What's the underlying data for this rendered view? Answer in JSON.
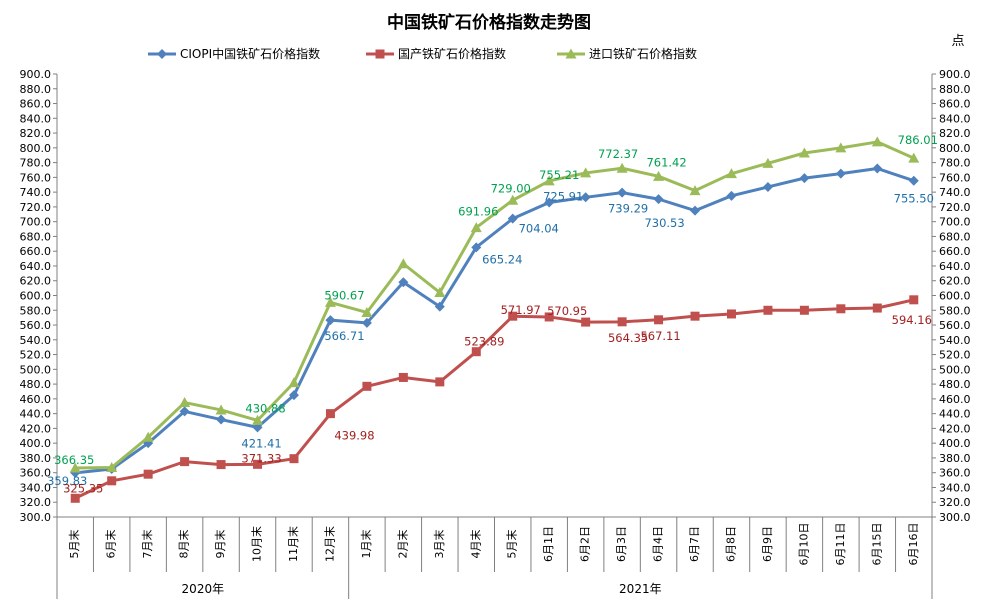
{
  "chart_data": {
    "type": "line",
    "title": "中国铁矿石价格指数走势图",
    "unit_label": "点",
    "ylim": [
      300,
      900
    ],
    "ystep": 20,
    "grid": false,
    "legend_position": "top",
    "categories": [
      "5月末",
      "6月末",
      "7月末",
      "8月末",
      "9月末",
      "10月末",
      "11月末",
      "12月末",
      "1月末",
      "2月末",
      "3月末",
      "4月末",
      "5月末",
      "6月1日",
      "6月2日",
      "6月3日",
      "6月4日",
      "6月7日",
      "6月8日",
      "6月9日",
      "6月10日",
      "6月11日",
      "6月15日",
      "6月16日"
    ],
    "year_groups": [
      {
        "label": "2020年",
        "start": 0,
        "end": 7
      },
      {
        "label": "2021年",
        "start": 8,
        "end": 23
      }
    ],
    "series": [
      {
        "name": "CIOPI中国铁矿石价格指数",
        "color": "#4F81BD",
        "marker": "diamond",
        "values": [
          359.83,
          365,
          400,
          443,
          432,
          421.41,
          465,
          566.71,
          563,
          618,
          585,
          665.24,
          704.04,
          725.91,
          733,
          739.29,
          730.53,
          715,
          735,
          747,
          759,
          765,
          772,
          755.5
        ]
      },
      {
        "name": "国产铁矿石价格指数",
        "color": "#C0504D",
        "marker": "square",
        "values": [
          325.35,
          349,
          358,
          375,
          371,
          371.33,
          379,
          439.98,
          477,
          489,
          483,
          523.89,
          571.97,
          570.95,
          564,
          564.35,
          567.11,
          572,
          575,
          580,
          580,
          582,
          583,
          594.16
        ]
      },
      {
        "name": "进口铁矿石价格指数",
        "color": "#9BBB59",
        "marker": "triangle",
        "values": [
          366.35,
          367,
          408,
          455,
          445,
          430.88,
          482,
          590.67,
          577,
          643,
          604,
          691.96,
          729.0,
          755.21,
          766,
          772.37,
          761.42,
          742,
          765,
          779,
          793,
          800,
          808,
          786.01
        ]
      }
    ],
    "annotations": [
      {
        "series": 0,
        "index": 0,
        "text": "359.83"
      },
      {
        "series": 0,
        "index": 5,
        "text": "421.41"
      },
      {
        "series": 0,
        "index": 7,
        "text": "566.71"
      },
      {
        "series": 0,
        "index": 11,
        "text": "665.24"
      },
      {
        "series": 0,
        "index": 12,
        "text": "704.04"
      },
      {
        "series": 0,
        "index": 13,
        "text": "725.91"
      },
      {
        "series": 0,
        "index": 15,
        "text": "739.29"
      },
      {
        "series": 0,
        "index": 16,
        "text": "730.53"
      },
      {
        "series": 0,
        "index": 23,
        "text": "755.50"
      },
      {
        "series": 1,
        "index": 0,
        "text": "325.35"
      },
      {
        "series": 1,
        "index": 5,
        "text": "371.33"
      },
      {
        "series": 1,
        "index": 7,
        "text": "439.98"
      },
      {
        "series": 1,
        "index": 11,
        "text": "523.89"
      },
      {
        "series": 1,
        "index": 12,
        "text": "571.97"
      },
      {
        "series": 1,
        "index": 13,
        "text": "570.95"
      },
      {
        "series": 1,
        "index": 15,
        "text": "564.35"
      },
      {
        "series": 1,
        "index": 16,
        "text": "567.11"
      },
      {
        "series": 1,
        "index": 23,
        "text": "594.16"
      },
      {
        "series": 2,
        "index": 0,
        "text": "366.35"
      },
      {
        "series": 2,
        "index": 5,
        "text": "430.88"
      },
      {
        "series": 2,
        "index": 7,
        "text": "590.67"
      },
      {
        "series": 2,
        "index": 11,
        "text": "691.96"
      },
      {
        "series": 2,
        "index": 12,
        "text": "729.00"
      },
      {
        "series": 2,
        "index": 13,
        "text": "755.21"
      },
      {
        "series": 2,
        "index": 15,
        "text": "772.37"
      },
      {
        "series": 2,
        "index": 16,
        "text": "761.42"
      },
      {
        "series": 2,
        "index": 23,
        "text": "786.01"
      }
    ],
    "label_colors": [
      "#1F6FA8",
      "#A32020",
      "#00A050"
    ]
  }
}
